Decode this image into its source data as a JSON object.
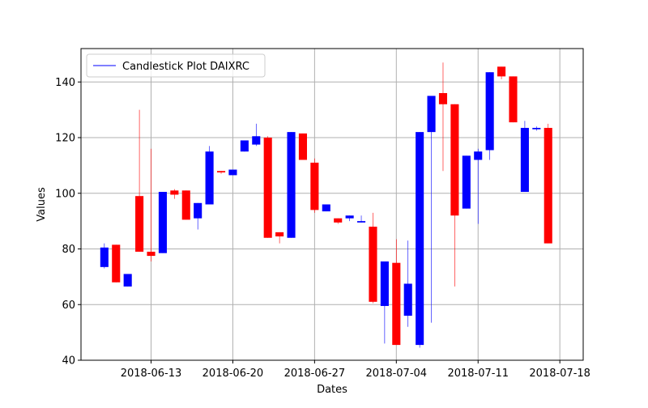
{
  "chart_data": {
    "type": "candlestick",
    "title": "",
    "xlabel": "Dates",
    "ylabel": "Values",
    "xlim": [
      "2018-06-07",
      "2018-07-20"
    ],
    "ylim": [
      40,
      152
    ],
    "x_ticks": [
      "2018-06-13",
      "2018-06-20",
      "2018-06-27",
      "2018-07-04",
      "2018-07-11",
      "2018-07-18"
    ],
    "y_ticks": [
      40,
      60,
      80,
      100,
      120,
      140
    ],
    "grid": true,
    "legend": {
      "placement": "top-left",
      "entries": [
        "Candlestick Plot DAIXRC"
      ]
    },
    "colors": {
      "up": "#0000ff",
      "down": "#ff0000"
    },
    "series": [
      {
        "name": "Candlestick Plot DAIXRC",
        "candles": [
          {
            "date": "2018-06-09",
            "open": 73.5,
            "close": 80.5,
            "low": 73.0,
            "high": 82.0
          },
          {
            "date": "2018-06-10",
            "open": 81.5,
            "close": 68.0,
            "low": 68.0,
            "high": 81.5
          },
          {
            "date": "2018-06-11",
            "open": 66.5,
            "close": 71.0,
            "low": 66.5,
            "high": 71.0
          },
          {
            "date": "2018-06-12",
            "open": 99.0,
            "close": 79.0,
            "low": 79.0,
            "high": 130.0
          },
          {
            "date": "2018-06-13",
            "open": 79.0,
            "close": 77.5,
            "low": 75.5,
            "high": 116.0
          },
          {
            "date": "2018-06-14",
            "open": 78.5,
            "close": 100.5,
            "low": 78.5,
            "high": 100.5
          },
          {
            "date": "2018-06-15",
            "open": 101.0,
            "close": 99.5,
            "low": 98.0,
            "high": 101.5
          },
          {
            "date": "2018-06-16",
            "open": 101.0,
            "close": 90.5,
            "low": 90.5,
            "high": 101.0
          },
          {
            "date": "2018-06-17",
            "open": 91.0,
            "close": 96.5,
            "low": 87.0,
            "high": 96.5
          },
          {
            "date": "2018-06-18",
            "open": 96.0,
            "close": 115.0,
            "low": 96.0,
            "high": 117.0
          },
          {
            "date": "2018-06-19",
            "open": 108.0,
            "close": 107.5,
            "low": 107.0,
            "high": 108.0
          },
          {
            "date": "2018-06-20",
            "open": 106.5,
            "close": 108.5,
            "low": 106.5,
            "high": 108.5
          },
          {
            "date": "2018-06-21",
            "open": 115.0,
            "close": 119.0,
            "low": 115.0,
            "high": 119.0
          },
          {
            "date": "2018-06-22",
            "open": 117.5,
            "close": 120.5,
            "low": 117.0,
            "high": 125.0
          },
          {
            "date": "2018-06-23",
            "open": 120.0,
            "close": 84.0,
            "low": 84.0,
            "high": 120.5
          },
          {
            "date": "2018-06-24",
            "open": 86.0,
            "close": 84.5,
            "low": 82.0,
            "high": 86.0
          },
          {
            "date": "2018-06-25",
            "open": 84.0,
            "close": 122.0,
            "low": 84.0,
            "high": 122.0
          },
          {
            "date": "2018-06-26",
            "open": 121.5,
            "close": 112.0,
            "low": 112.0,
            "high": 121.5
          },
          {
            "date": "2018-06-27",
            "open": 111.0,
            "close": 94.0,
            "low": 93.0,
            "high": 112.5
          },
          {
            "date": "2018-06-28",
            "open": 93.5,
            "close": 96.0,
            "low": 93.5,
            "high": 96.0
          },
          {
            "date": "2018-06-29",
            "open": 91.0,
            "close": 89.5,
            "low": 89.0,
            "high": 91.0
          },
          {
            "date": "2018-06-30",
            "open": 91.0,
            "close": 92.0,
            "low": 90.0,
            "high": 92.0
          },
          {
            "date": "2018-07-01",
            "open": 89.5,
            "close": 90.0,
            "low": 89.5,
            "high": 92.0
          },
          {
            "date": "2018-07-02",
            "open": 88.0,
            "close": 61.0,
            "low": 60.5,
            "high": 93.0
          },
          {
            "date": "2018-07-03",
            "open": 59.5,
            "close": 75.5,
            "low": 46.0,
            "high": 75.5
          },
          {
            "date": "2018-07-04",
            "open": 75.0,
            "close": 45.5,
            "low": 45.5,
            "high": 83.5
          },
          {
            "date": "2018-07-05",
            "open": 56.0,
            "close": 67.5,
            "low": 52.0,
            "high": 83.0
          },
          {
            "date": "2018-07-06",
            "open": 45.5,
            "close": 122.0,
            "low": 44.5,
            "high": 122.0
          },
          {
            "date": "2018-07-07",
            "open": 122.0,
            "close": 135.0,
            "low": 53.5,
            "high": 135.0
          },
          {
            "date": "2018-07-08",
            "open": 136.0,
            "close": 132.0,
            "low": 108.0,
            "high": 147.0
          },
          {
            "date": "2018-07-09",
            "open": 132.0,
            "close": 92.0,
            "low": 66.5,
            "high": 132.0
          },
          {
            "date": "2018-07-10",
            "open": 94.5,
            "close": 113.5,
            "low": 94.5,
            "high": 113.5
          },
          {
            "date": "2018-07-11",
            "open": 112.0,
            "close": 115.0,
            "low": 89.0,
            "high": 116.0
          },
          {
            "date": "2018-07-12",
            "open": 115.5,
            "close": 143.5,
            "low": 112.0,
            "high": 143.5
          },
          {
            "date": "2018-07-13",
            "open": 145.5,
            "close": 142.0,
            "low": 141.0,
            "high": 145.5
          },
          {
            "date": "2018-07-14",
            "open": 142.0,
            "close": 125.5,
            "low": 125.5,
            "high": 142.0
          },
          {
            "date": "2018-07-15",
            "open": 100.5,
            "close": 123.5,
            "low": 100.5,
            "high": 126.0
          },
          {
            "date": "2018-07-16",
            "open": 123.0,
            "close": 123.5,
            "low": 122.5,
            "high": 124.0
          },
          {
            "date": "2018-07-17",
            "open": 123.5,
            "close": 82.0,
            "low": 82.0,
            "high": 125.0
          }
        ]
      }
    ]
  }
}
